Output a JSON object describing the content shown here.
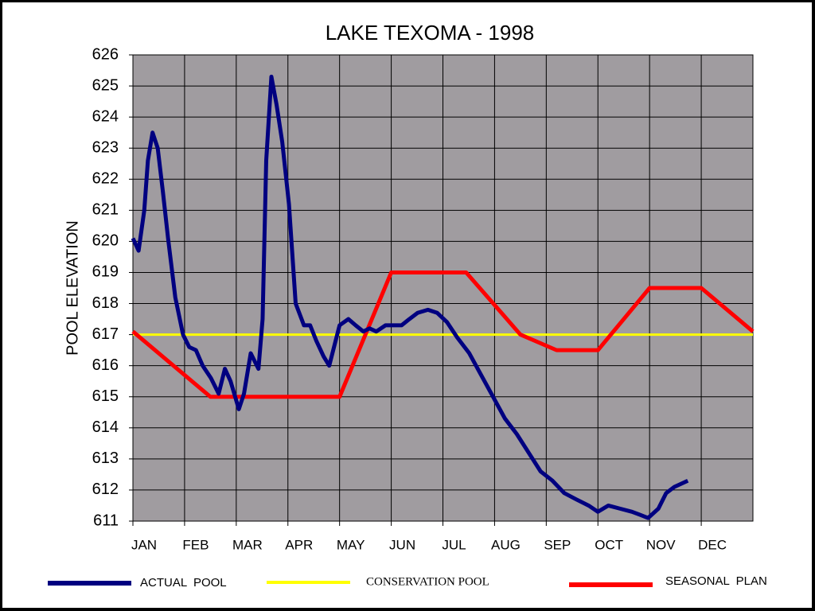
{
  "chart_data": {
    "type": "line",
    "title": "LAKE TEXOMA - 1998",
    "y_label": "POOL ELEVATION",
    "xlim": [
      0,
      12
    ],
    "ylim": [
      611,
      626
    ],
    "xticks": [
      {
        "value": 0,
        "label": "JAN"
      },
      {
        "value": 1,
        "label": "FEB"
      },
      {
        "value": 2,
        "label": "MAR"
      },
      {
        "value": 3,
        "label": "APR"
      },
      {
        "value": 4,
        "label": "MAY"
      },
      {
        "value": 5,
        "label": "JUN"
      },
      {
        "value": 6,
        "label": "JUL"
      },
      {
        "value": 7,
        "label": "AUG"
      },
      {
        "value": 8,
        "label": "SEP"
      },
      {
        "value": 9,
        "label": "OCT"
      },
      {
        "value": 10,
        "label": "NOV"
      },
      {
        "value": 11,
        "label": "DEC"
      }
    ],
    "yticks": [
      611,
      612,
      613,
      614,
      615,
      616,
      617,
      618,
      619,
      620,
      621,
      622,
      623,
      624,
      625,
      626
    ],
    "grid": true,
    "series": [
      {
        "name": "ACTUAL  POOL",
        "color": "#000080",
        "x": [
          0,
          0.11,
          0.22,
          0.29,
          0.38,
          0.48,
          0.58,
          0.68,
          0.82,
          0.97,
          1.09,
          1.22,
          1.35,
          1.51,
          1.66,
          1.78,
          1.89,
          2.05,
          2.15,
          2.28,
          2.43,
          2.51,
          2.58,
          2.68,
          2.78,
          2.89,
          3.02,
          3.15,
          3.31,
          3.43,
          3.55,
          3.69,
          3.8,
          4.0,
          4.17,
          4.31,
          4.46,
          4.58,
          4.71,
          4.89,
          5.05,
          5.2,
          5.35,
          5.51,
          5.71,
          5.89,
          6.08,
          6.28,
          6.51,
          6.74,
          6.97,
          7.2,
          7.43,
          7.66,
          7.89,
          8.12,
          8.35,
          8.58,
          8.82,
          9.0,
          9.2,
          9.43,
          9.66,
          9.82,
          9.97,
          10.17,
          10.32,
          10.48,
          10.74
        ],
        "values": [
          620.1,
          619.7,
          621.0,
          622.6,
          623.5,
          623.0,
          621.6,
          620.1,
          618.2,
          617.0,
          616.6,
          616.5,
          616.0,
          615.6,
          615.1,
          615.9,
          615.5,
          614.6,
          615.1,
          616.4,
          615.9,
          617.5,
          622.6,
          625.3,
          624.4,
          623.2,
          621.2,
          618.0,
          617.3,
          617.3,
          616.8,
          616.3,
          616.0,
          617.3,
          617.5,
          617.3,
          617.1,
          617.2,
          617.1,
          617.3,
          617.3,
          617.3,
          617.5,
          617.7,
          617.8,
          617.7,
          617.4,
          616.9,
          616.4,
          615.7,
          615.0,
          614.3,
          613.8,
          613.2,
          612.6,
          612.3,
          611.9,
          611.7,
          611.5,
          611.3,
          611.5,
          611.4,
          611.3,
          611.2,
          611.1,
          611.4,
          611.9,
          612.1,
          612.3
        ]
      },
      {
        "name": "CONSERVATION POOL",
        "color": "#ffff00",
        "x": [
          0,
          12
        ],
        "values": [
          617,
          617
        ]
      },
      {
        "name": "SEASONAL  PLAN",
        "color": "#ff0000",
        "x": [
          0,
          1.5,
          4,
          5,
          6.45,
          7.5,
          8.2,
          9,
          10,
          11,
          12
        ],
        "values": [
          617.1,
          615,
          615,
          619,
          619,
          617,
          616.5,
          616.5,
          618.5,
          618.5,
          617.1
        ]
      }
    ]
  }
}
